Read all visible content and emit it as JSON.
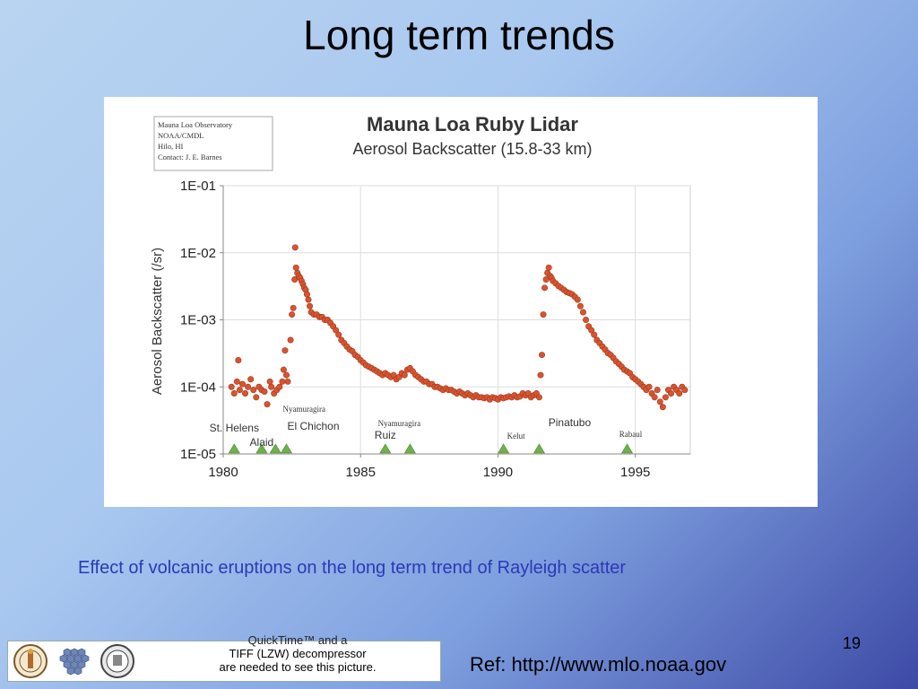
{
  "slide": {
    "title": "Long term trends",
    "caption": "Effect of volcanic eruptions on the long term trend of Rayleigh scatter",
    "page_number": "19",
    "reference": "Ref: http://www.mlo.noaa.gov",
    "placeholder": {
      "line1": "QuickTime™ and a",
      "line2": "TIFF (LZW) decompressor",
      "line3": "are needed to see this picture."
    },
    "colors": {
      "caption": "#2b39b5",
      "points": "#d9542e",
      "triangles": "#6fb04a"
    }
  },
  "chart_data": {
    "type": "scatter",
    "title": "Mauna Loa Ruby Lidar",
    "subtitle": "Aerosol Backscatter (15.8-33 km)",
    "info_box": [
      "Mauna Loa Observatory",
      "NOAA/CMDL",
      "Hilo, HI",
      "Contact: J. E. Barnes"
    ],
    "xlabel": "",
    "ylabel": "Aerosol Backscatter (/sr)",
    "xlim": [
      1980,
      1997
    ],
    "ylim": [
      1e-05,
      0.1
    ],
    "yscale": "log",
    "x_ticks": [
      "1980",
      "1985",
      "1990",
      "1995"
    ],
    "y_ticks": [
      "1E-01",
      "1E-02",
      "1E-03",
      "1E-04",
      "1E-05"
    ],
    "grid": true,
    "series": [
      {
        "points": [
          [
            1980.3,
            0.0001
          ],
          [
            1980.4,
            8e-05
          ],
          [
            1980.5,
            0.00012
          ],
          [
            1980.55,
            0.00025
          ],
          [
            1980.6,
            9e-05
          ],
          [
            1980.7,
            0.00011
          ],
          [
            1980.8,
            8e-05
          ],
          [
            1980.9,
            0.0001
          ],
          [
            1981.0,
            0.00013
          ],
          [
            1981.1,
            9e-05
          ],
          [
            1981.2,
            7e-05
          ],
          [
            1981.3,
            0.0001
          ],
          [
            1981.4,
            9e-05
          ],
          [
            1981.5,
            8.5e-05
          ],
          [
            1981.6,
            5.5e-05
          ],
          [
            1981.7,
            0.00012
          ],
          [
            1981.75,
            0.0001
          ],
          [
            1981.85,
            8e-05
          ],
          [
            1981.95,
            9e-05
          ],
          [
            1982.05,
            0.0001
          ],
          [
            1982.15,
            0.00012
          ],
          [
            1982.2,
            0.00018
          ],
          [
            1982.25,
            0.00035
          ],
          [
            1982.3,
            0.00015
          ],
          [
            1982.35,
            0.00012
          ],
          [
            1982.45,
            0.0005
          ],
          [
            1982.5,
            0.0012
          ],
          [
            1982.55,
            0.0015
          ],
          [
            1982.6,
            0.004
          ],
          [
            1982.62,
            0.012
          ],
          [
            1982.65,
            0.006
          ],
          [
            1982.7,
            0.005
          ],
          [
            1982.75,
            0.0045
          ],
          [
            1982.8,
            0.0042
          ],
          [
            1982.85,
            0.0038
          ],
          [
            1982.9,
            0.0034
          ],
          [
            1982.95,
            0.003
          ],
          [
            1983.0,
            0.0028
          ],
          [
            1983.05,
            0.0024
          ],
          [
            1983.1,
            0.002
          ],
          [
            1983.15,
            0.0016
          ],
          [
            1983.2,
            0.0013
          ],
          [
            1983.3,
            0.0012
          ],
          [
            1983.4,
            0.0012
          ],
          [
            1983.5,
            0.0011
          ],
          [
            1983.6,
            0.0011
          ],
          [
            1983.7,
            0.001
          ],
          [
            1983.8,
            0.001
          ],
          [
            1983.9,
            0.0009
          ],
          [
            1984.0,
            0.0008
          ],
          [
            1984.1,
            0.0007
          ],
          [
            1984.2,
            0.0006
          ],
          [
            1984.3,
            0.0005
          ],
          [
            1984.4,
            0.00045
          ],
          [
            1984.5,
            0.0004
          ],
          [
            1984.6,
            0.00036
          ],
          [
            1984.7,
            0.00034
          ],
          [
            1984.8,
            0.0003
          ],
          [
            1984.9,
            0.00028
          ],
          [
            1985.0,
            0.00025
          ],
          [
            1985.1,
            0.00023
          ],
          [
            1985.2,
            0.00021
          ],
          [
            1985.3,
            0.0002
          ],
          [
            1985.4,
            0.00019
          ],
          [
            1985.5,
            0.00018
          ],
          [
            1985.6,
            0.00017
          ],
          [
            1985.7,
            0.00016
          ],
          [
            1985.8,
            0.00015
          ],
          [
            1985.9,
            0.00016
          ],
          [
            1986.0,
            0.00015
          ],
          [
            1986.1,
            0.00014
          ],
          [
            1986.2,
            0.00015
          ],
          [
            1986.3,
            0.00013
          ],
          [
            1986.4,
            0.00014
          ],
          [
            1986.5,
            0.00016
          ],
          [
            1986.6,
            0.00015
          ],
          [
            1986.7,
            0.00018
          ],
          [
            1986.8,
            0.00019
          ],
          [
            1986.9,
            0.00017
          ],
          [
            1987.0,
            0.00015
          ],
          [
            1987.1,
            0.00014
          ],
          [
            1987.2,
            0.00013
          ],
          [
            1987.3,
            0.00012
          ],
          [
            1987.4,
            0.00012
          ],
          [
            1987.5,
            0.00011
          ],
          [
            1987.6,
            0.00011
          ],
          [
            1987.7,
            0.0001
          ],
          [
            1987.8,
            0.0001
          ],
          [
            1987.9,
            9.5e-05
          ],
          [
            1988.0,
            9e-05
          ],
          [
            1988.1,
            9.5e-05
          ],
          [
            1988.2,
            9e-05
          ],
          [
            1988.3,
            9e-05
          ],
          [
            1988.4,
            8.5e-05
          ],
          [
            1988.5,
            8e-05
          ],
          [
            1988.6,
            8.5e-05
          ],
          [
            1988.7,
            8e-05
          ],
          [
            1988.8,
            7.5e-05
          ],
          [
            1988.9,
            8e-05
          ],
          [
            1989.0,
            7.5e-05
          ],
          [
            1989.1,
            7e-05
          ],
          [
            1989.2,
            7.5e-05
          ],
          [
            1989.3,
            7e-05
          ],
          [
            1989.4,
            7e-05
          ],
          [
            1989.5,
            6.8e-05
          ],
          [
            1989.6,
            7e-05
          ],
          [
            1989.7,
            6.5e-05
          ],
          [
            1989.8,
            7e-05
          ],
          [
            1989.9,
            6.8e-05
          ],
          [
            1990.0,
            6.5e-05
          ],
          [
            1990.1,
            7e-05
          ],
          [
            1990.2,
            6.8e-05
          ],
          [
            1990.3,
            7e-05
          ],
          [
            1990.4,
            7.2e-05
          ],
          [
            1990.5,
            7e-05
          ],
          [
            1990.6,
            7.5e-05
          ],
          [
            1990.7,
            7e-05
          ],
          [
            1990.8,
            7.2e-05
          ],
          [
            1990.9,
            8e-05
          ],
          [
            1991.0,
            7.5e-05
          ],
          [
            1991.1,
            8e-05
          ],
          [
            1991.2,
            7e-05
          ],
          [
            1991.3,
            7.5e-05
          ],
          [
            1991.4,
            8e-05
          ],
          [
            1991.5,
            7e-05
          ],
          [
            1991.55,
            0.00015
          ],
          [
            1991.6,
            0.0003
          ],
          [
            1991.65,
            0.0012
          ],
          [
            1991.7,
            0.003
          ],
          [
            1991.75,
            0.004
          ],
          [
            1991.8,
            0.005
          ],
          [
            1991.85,
            0.006
          ],
          [
            1991.9,
            0.0045
          ],
          [
            1991.95,
            0.0042
          ],
          [
            1992.0,
            0.0038
          ],
          [
            1992.1,
            0.0035
          ],
          [
            1992.2,
            0.0032
          ],
          [
            1992.3,
            0.003
          ],
          [
            1992.4,
            0.0028
          ],
          [
            1992.5,
            0.0026
          ],
          [
            1992.6,
            0.0025
          ],
          [
            1992.7,
            0.0024
          ],
          [
            1992.8,
            0.0022
          ],
          [
            1992.9,
            0.002
          ],
          [
            1993.0,
            0.0016
          ],
          [
            1993.1,
            0.0013
          ],
          [
            1993.2,
            0.001
          ],
          [
            1993.3,
            0.0008
          ],
          [
            1993.4,
            0.0007
          ],
          [
            1993.5,
            0.0006
          ],
          [
            1993.6,
            0.0005
          ],
          [
            1993.7,
            0.00045
          ],
          [
            1993.8,
            0.0004
          ],
          [
            1993.9,
            0.00036
          ],
          [
            1994.0,
            0.00032
          ],
          [
            1994.1,
            0.0003
          ],
          [
            1994.2,
            0.00027
          ],
          [
            1994.3,
            0.00024
          ],
          [
            1994.4,
            0.00022
          ],
          [
            1994.5,
            0.0002
          ],
          [
            1994.6,
            0.00018
          ],
          [
            1994.7,
            0.00017
          ],
          [
            1994.8,
            0.00016
          ],
          [
            1994.9,
            0.00014
          ],
          [
            1995.0,
            0.00013
          ],
          [
            1995.1,
            0.00012
          ],
          [
            1995.2,
            0.00011
          ],
          [
            1995.3,
            0.0001
          ],
          [
            1995.4,
            9e-05
          ],
          [
            1995.5,
            0.0001
          ],
          [
            1995.6,
            8e-05
          ],
          [
            1995.7,
            7e-05
          ],
          [
            1995.8,
            9e-05
          ],
          [
            1995.9,
            6e-05
          ],
          [
            1996.0,
            5e-05
          ],
          [
            1996.1,
            7e-05
          ],
          [
            1996.2,
            9e-05
          ],
          [
            1996.3,
            8e-05
          ],
          [
            1996.4,
            0.0001
          ],
          [
            1996.5,
            9e-05
          ],
          [
            1996.6,
            8e-05
          ],
          [
            1996.7,
            0.0001
          ],
          [
            1996.8,
            9e-05
          ]
        ]
      }
    ],
    "eruptions": [
      {
        "year": 1980.4,
        "label": "St. Helens"
      },
      {
        "year": 1981.4,
        "label": "Alaid"
      },
      {
        "year": 1981.9,
        "label": "Nyamuragira"
      },
      {
        "year": 1982.3,
        "label": "El Chichon"
      },
      {
        "year": 1985.9,
        "label": "Ruiz"
      },
      {
        "year": 1986.8,
        "label": "Nyamuragira"
      },
      {
        "year": 1990.2,
        "label": "Kelut"
      },
      {
        "year": 1991.5,
        "label": "Pinatubo"
      },
      {
        "year": 1994.7,
        "label": "Rabaul"
      }
    ]
  }
}
